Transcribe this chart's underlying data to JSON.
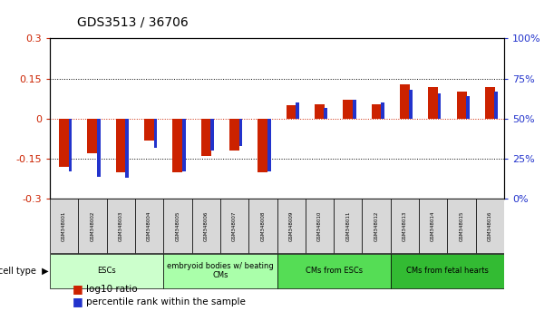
{
  "title": "GDS3513 / 36706",
  "samples": [
    "GSM348001",
    "GSM348002",
    "GSM348003",
    "GSM348004",
    "GSM348005",
    "GSM348006",
    "GSM348007",
    "GSM348008",
    "GSM348009",
    "GSM348010",
    "GSM348011",
    "GSM348012",
    "GSM348013",
    "GSM348014",
    "GSM348015",
    "GSM348016"
  ],
  "log10_ratio": [
    -0.18,
    -0.13,
    -0.2,
    -0.08,
    -0.2,
    -0.14,
    -0.12,
    -0.2,
    0.05,
    0.055,
    0.07,
    0.055,
    0.13,
    0.12,
    0.1,
    0.12
  ],
  "percentile_rank": [
    17,
    14,
    13,
    32,
    17,
    30,
    33,
    17,
    60,
    57,
    62,
    60,
    68,
    66,
    64,
    67
  ],
  "cell_type_groups": [
    {
      "label": "ESCs",
      "start": 0,
      "end": 4,
      "color": "#ccffcc"
    },
    {
      "label": "embryoid bodies w/ beating\nCMs",
      "start": 4,
      "end": 8,
      "color": "#ccffcc"
    },
    {
      "label": "CMs from ESCs",
      "start": 8,
      "end": 12,
      "color": "#55dd55"
    },
    {
      "label": "CMs from fetal hearts",
      "start": 12,
      "end": 16,
      "color": "#33bb33"
    }
  ],
  "bar_color_red": "#cc2200",
  "bar_color_blue": "#2233cc",
  "ylim_left": [
    -0.3,
    0.3
  ],
  "ylim_right": [
    0,
    100
  ],
  "yticks_left": [
    -0.3,
    -0.15,
    0,
    0.15,
    0.3
  ],
  "yticks_left_labels": [
    "-0.3",
    "-0.15",
    "0",
    "0.15",
    "0.3"
  ],
  "yticks_right": [
    0,
    25,
    50,
    75,
    100
  ],
  "yticks_right_labels": [
    "0%",
    "25%",
    "50%",
    "75%",
    "100%"
  ],
  "legend_red_label": "log10 ratio",
  "legend_blue_label": "percentile rank within the sample",
  "cell_type_label": "cell type"
}
